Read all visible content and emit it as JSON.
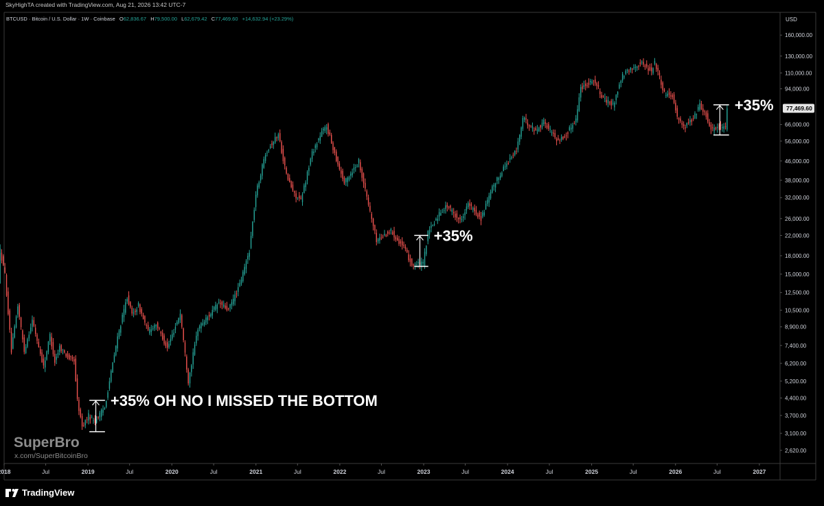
{
  "header": {
    "created_by": "SkyHighTA created with TradingView.com, Aug 21, 2026 13:42 UTC-7",
    "symbol_info": "BTCUSD · Bitcoin / U.S. Dollar · 1W · Coinbase",
    "open_label": "O",
    "open_value": "62,836.67",
    "high_label": "H",
    "high_value": "79,500.00",
    "low_label": "L",
    "low_value": "62,679.42",
    "close_label": "C",
    "close_value": "77,469.60",
    "change": "+14,632.94 (+23.29%)"
  },
  "currency": "USD",
  "last_price_label": "77,469.60",
  "watermark": {
    "name": "SuperBro",
    "handle": "x.com/SuperBitcoinBro"
  },
  "footer": {
    "brand": "TradingView"
  },
  "colors": {
    "up": "#26a69a",
    "down": "#ef5350",
    "background": "#000000",
    "axis_text": "#d1d4dc",
    "annotation": "#ffffff"
  },
  "chart_data": {
    "type": "candlestick",
    "title": "BTCUSD · Bitcoin / U.S. Dollar · 1W · Coinbase",
    "y_scale": "log",
    "ylim": [
      2300,
      175000
    ],
    "xlim": [
      "2018-01-01",
      "2027-04-01"
    ],
    "y_ticks": [
      "160,000.00",
      "130,000.00",
      "110,000.00",
      "94,000.00",
      "66,000.00",
      "56,000.00",
      "46,000.00",
      "38,000.00",
      "32,000.00",
      "26,000.00",
      "22,000.00",
      "18,000.00",
      "15,000.00",
      "12,500.00",
      "10,500.00",
      "8,900.00",
      "7,400.00",
      "6,200.00",
      "5,200.00",
      "4,400.00",
      "3,700.00",
      "3,100.00",
      "2,620.00"
    ],
    "x_ticks": [
      {
        "label": "2018",
        "date": "2018-01-01",
        "bold": true
      },
      {
        "label": "Jul",
        "date": "2018-07-01",
        "bold": false
      },
      {
        "label": "2019",
        "date": "2019-01-01",
        "bold": true
      },
      {
        "label": "Jul",
        "date": "2019-07-01",
        "bold": false
      },
      {
        "label": "2020",
        "date": "2020-01-01",
        "bold": true
      },
      {
        "label": "Jul",
        "date": "2020-07-01",
        "bold": false
      },
      {
        "label": "2021",
        "date": "2021-01-01",
        "bold": true
      },
      {
        "label": "Jul",
        "date": "2021-07-01",
        "bold": false
      },
      {
        "label": "2022",
        "date": "2022-01-01",
        "bold": true
      },
      {
        "label": "Jul",
        "date": "2022-07-01",
        "bold": false
      },
      {
        "label": "2023",
        "date": "2023-01-01",
        "bold": true
      },
      {
        "label": "Jul",
        "date": "2023-07-01",
        "bold": false
      },
      {
        "label": "2024",
        "date": "2024-01-01",
        "bold": true
      },
      {
        "label": "Jul",
        "date": "2024-07-01",
        "bold": false
      },
      {
        "label": "2025",
        "date": "2025-01-01",
        "bold": true
      },
      {
        "label": "Jul",
        "date": "2025-07-01",
        "bold": false
      },
      {
        "label": "2026",
        "date": "2026-01-01",
        "bold": true
      },
      {
        "label": "Jul",
        "date": "2026-07-01",
        "bold": false
      },
      {
        "label": "2027",
        "date": "2027-01-01",
        "bold": true
      }
    ],
    "price_path": [
      [
        "2017-12-11",
        14000
      ],
      [
        "2017-12-18",
        19000
      ],
      [
        "2018-01-08",
        15000
      ],
      [
        "2018-02-05",
        7000
      ],
      [
        "2018-03-05",
        11000
      ],
      [
        "2018-04-02",
        7000
      ],
      [
        "2018-05-07",
        9500
      ],
      [
        "2018-06-25",
        6000
      ],
      [
        "2018-07-23",
        8200
      ],
      [
        "2018-08-13",
        6300
      ],
      [
        "2018-09-03",
        7300
      ],
      [
        "2018-10-15",
        6500
      ],
      [
        "2018-11-05",
        6400
      ],
      [
        "2018-11-19",
        4300
      ],
      [
        "2018-12-10",
        3300
      ],
      [
        "2019-01-07",
        3700
      ],
      [
        "2019-02-04",
        3500
      ],
      [
        "2019-03-18",
        4000
      ],
      [
        "2019-04-08",
        5200
      ],
      [
        "2019-05-13",
        8000
      ],
      [
        "2019-06-24",
        12000
      ],
      [
        "2019-07-15",
        10000
      ],
      [
        "2019-08-12",
        11000
      ],
      [
        "2019-09-23",
        8500
      ],
      [
        "2019-10-28",
        9200
      ],
      [
        "2019-12-16",
        7200
      ],
      [
        "2020-02-10",
        10200
      ],
      [
        "2020-03-16",
        5200
      ],
      [
        "2020-04-27",
        8800
      ],
      [
        "2020-06-01",
        9600
      ],
      [
        "2020-07-27",
        11300
      ],
      [
        "2020-09-07",
        10500
      ],
      [
        "2020-10-26",
        13500
      ],
      [
        "2020-12-07",
        19000
      ],
      [
        "2021-01-04",
        33000
      ],
      [
        "2021-02-15",
        50000
      ],
      [
        "2021-04-12",
        60000
      ],
      [
        "2021-05-17",
        40000
      ],
      [
        "2021-06-21",
        33000
      ],
      [
        "2021-07-19",
        31000
      ],
      [
        "2021-09-06",
        50000
      ],
      [
        "2021-10-18",
        61000
      ],
      [
        "2021-11-08",
        65000
      ],
      [
        "2021-12-20",
        47000
      ],
      [
        "2022-01-24",
        37000
      ],
      [
        "2022-03-28",
        46000
      ],
      [
        "2022-05-09",
        30000
      ],
      [
        "2022-06-13",
        21000
      ],
      [
        "2022-08-15",
        23000
      ],
      [
        "2022-10-10",
        19500
      ],
      [
        "2022-11-14",
        16500
      ],
      [
        "2023-01-02",
        16600
      ],
      [
        "2023-01-23",
        22500
      ],
      [
        "2023-03-20",
        28000
      ],
      [
        "2023-04-17",
        29500
      ],
      [
        "2023-06-12",
        25500
      ],
      [
        "2023-07-17",
        30000
      ],
      [
        "2023-09-11",
        26000
      ],
      [
        "2023-10-30",
        35000
      ],
      [
        "2023-12-18",
        43000
      ],
      [
        "2024-02-12",
        51000
      ],
      [
        "2024-03-11",
        70000
      ],
      [
        "2024-05-06",
        62000
      ],
      [
        "2024-06-10",
        68000
      ],
      [
        "2024-08-05",
        57000
      ],
      [
        "2024-09-09",
        58000
      ],
      [
        "2024-10-28",
        70000
      ],
      [
        "2024-11-18",
        95000
      ],
      [
        "2025-01-13",
        103000
      ],
      [
        "2025-02-24",
        85000
      ],
      [
        "2025-04-07",
        80000
      ],
      [
        "2025-05-19",
        107000
      ],
      [
        "2025-07-14",
        118000
      ],
      [
        "2025-08-11",
        121000
      ],
      [
        "2025-09-22",
        112000
      ],
      [
        "2025-10-06",
        123000
      ],
      [
        "2025-11-17",
        90000
      ],
      [
        "2025-12-22",
        88000
      ],
      [
        "2026-01-12",
        72000
      ],
      [
        "2026-02-09",
        64000
      ],
      [
        "2026-03-23",
        70000
      ],
      [
        "2026-04-20",
        80000
      ],
      [
        "2026-05-18",
        72000
      ],
      [
        "2026-06-08",
        63000
      ],
      [
        "2026-07-13",
        65000
      ],
      [
        "2026-08-10",
        62800
      ],
      [
        "2026-08-17",
        77470
      ]
    ],
    "annotations": [
      {
        "from_date": "2019-01-07",
        "to_date": "2019-03-04",
        "low": 3150,
        "high": 4300,
        "label": "+35% OH NO I MISSED THE BOTTOM"
      },
      {
        "from_date": "2022-11-21",
        "to_date": "2023-01-09",
        "low": 16200,
        "high": 22000,
        "label": "+35%"
      },
      {
        "from_date": "2026-06-15",
        "to_date": "2026-08-10",
        "low": 59500,
        "high": 80200,
        "label": "+35%"
      }
    ],
    "last_price": 77469.6
  }
}
